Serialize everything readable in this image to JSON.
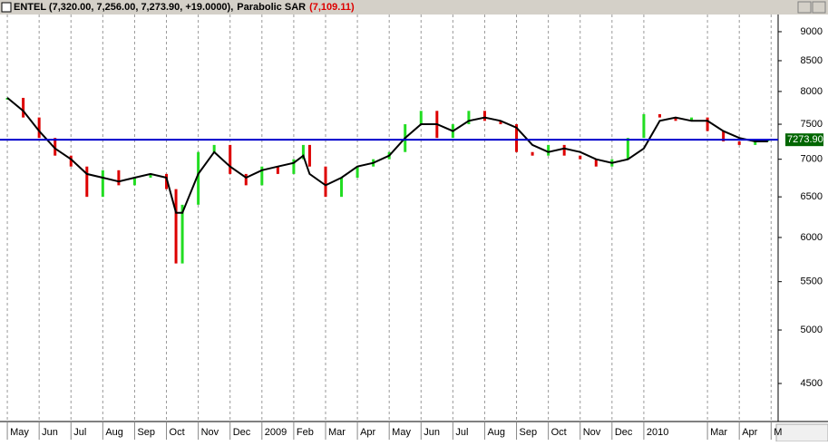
{
  "chart_data": {
    "type": "price",
    "title": "ENTEL (7,320.00, 7,256.00, 7,273.90, +19.0000),",
    "indicator": "Parabolic SAR",
    "indicator_value": "(7,109.11)",
    "log_scale": true,
    "grid": true,
    "xlim": [
      -0.23,
      24.22
    ],
    "ylim": [
      4175,
      9310
    ],
    "yticks": [
      4500,
      5000,
      5500,
      6000,
      6500,
      7000,
      7500,
      8000,
      8500,
      9000
    ],
    "xticks": [
      {
        "value": 0,
        "label": "May"
      },
      {
        "value": 1,
        "label": "Jun"
      },
      {
        "value": 2,
        "label": "Jul"
      },
      {
        "value": 3,
        "label": "Aug"
      },
      {
        "value": 4,
        "label": "Sep"
      },
      {
        "value": 5,
        "label": "Oct"
      },
      {
        "value": 6,
        "label": "Nov"
      },
      {
        "value": 7,
        "label": "Dec"
      },
      {
        "value": 8,
        "label": "2009"
      },
      {
        "value": 9,
        "label": "Feb"
      },
      {
        "value": 10,
        "label": "Mar"
      },
      {
        "value": 11,
        "label": "Apr"
      },
      {
        "value": 12,
        "label": "May"
      },
      {
        "value": 13,
        "label": "Jun"
      },
      {
        "value": 14,
        "label": "Jul"
      },
      {
        "value": 15,
        "label": "Aug"
      },
      {
        "value": 16,
        "label": "Sep"
      },
      {
        "value": 17,
        "label": "Oct"
      },
      {
        "value": 18,
        "label": "Nov"
      },
      {
        "value": 19,
        "label": "Dec"
      },
      {
        "value": 20,
        "label": "2010"
      },
      {
        "value": 22,
        "label": "Mar"
      },
      {
        "value": 23,
        "label": "Apr"
      },
      {
        "value": 24,
        "label": "M"
      }
    ],
    "x": [
      0,
      0.5,
      1,
      1.5,
      2,
      2.5,
      3,
      3.5,
      4,
      4.5,
      5,
      5.3,
      5.5,
      6,
      6.5,
      7,
      7.5,
      8,
      8.5,
      9,
      9.3,
      9.5,
      10,
      10.5,
      11,
      11.5,
      12,
      12.5,
      13,
      13.5,
      14,
      14.5,
      15,
      15.5,
      16,
      16.5,
      17,
      17.5,
      18,
      18.5,
      19,
      19.5,
      20,
      20.5,
      21,
      21.5,
      22,
      22.5,
      23,
      23.5,
      23.9
    ],
    "series": [
      {
        "name": "Price",
        "up_color": "#22dd22",
        "down_color": "#dd0000",
        "values": [
          7900,
          7600,
          7300,
          7050,
          6900,
          6500,
          6850,
          6650,
          6750,
          6800,
          6600,
          5700,
          6400,
          7100,
          7200,
          6800,
          6650,
          6900,
          6800,
          7000,
          7200,
          6900,
          6500,
          6750,
          6900,
          7000,
          7100,
          7500,
          7700,
          7300,
          7500,
          7700,
          7550,
          7500,
          7100,
          7050,
          7200,
          7050,
          7000,
          6900,
          7000,
          7300,
          7650,
          7600,
          7550,
          7600,
          7400,
          7250,
          7200,
          7250,
          7274
        ]
      },
      {
        "name": "Moving Average",
        "color": "#000000",
        "values": [
          7900,
          7700,
          7400,
          7150,
          7000,
          6800,
          6750,
          6700,
          6750,
          6800,
          6750,
          6300,
          6300,
          6800,
          7100,
          6900,
          6750,
          6850,
          6900,
          6950,
          7050,
          6800,
          6650,
          6750,
          6900,
          6950,
          7050,
          7300,
          7500,
          7500,
          7400,
          7550,
          7600,
          7550,
          7450,
          7200,
          7100,
          7150,
          7100,
          7000,
          6950,
          7000,
          7150,
          7550,
          7600,
          7550,
          7550,
          7400,
          7300,
          7250,
          7250
        ]
      }
    ],
    "last": {
      "value": 7273.9,
      "label": "7273.90",
      "color": "#0000cc"
    }
  }
}
